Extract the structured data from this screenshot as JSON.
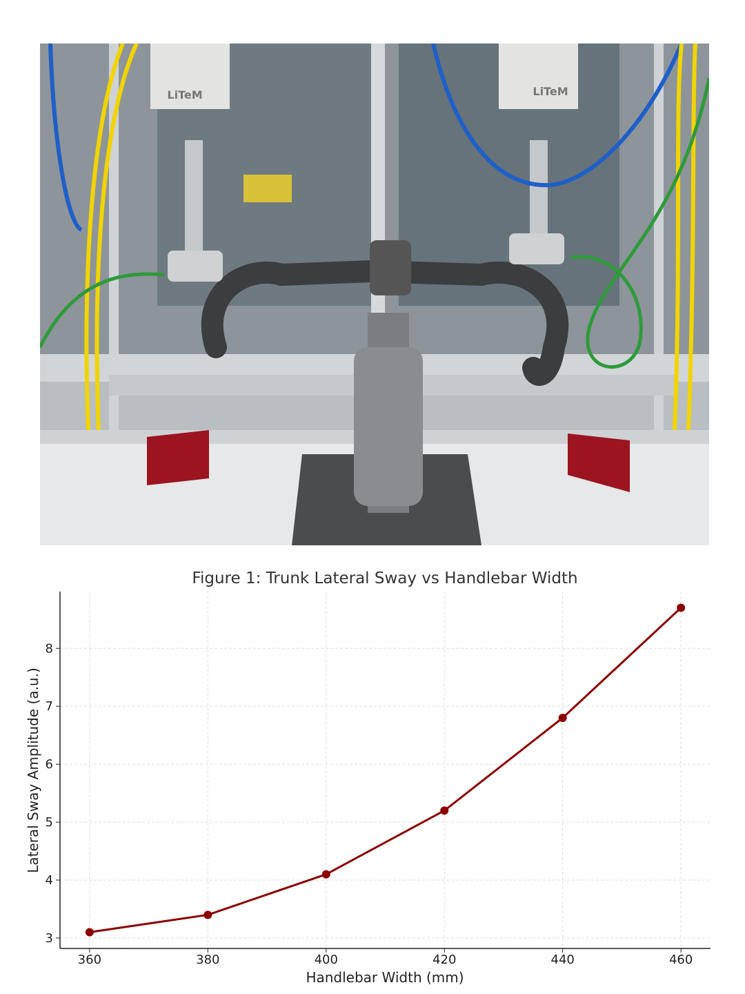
{
  "photo": {
    "logo_text": [
      "LiTeM",
      "LiTeM"
    ]
  },
  "chart_data": {
    "type": "line",
    "title": "Figure 1: Trunk Lateral Sway vs Handlebar Width",
    "xlabel": "Handlebar Width (mm)",
    "ylabel": "Lateral Sway Amplitude (a.u.)",
    "x": [
      360,
      380,
      400,
      420,
      440,
      460
    ],
    "series": [
      {
        "values": [
          3.1,
          3.4,
          4.1,
          5.2,
          6.8,
          8.7
        ],
        "color": "#8b0000"
      }
    ],
    "xticks": [
      360,
      380,
      400,
      420,
      440,
      460
    ],
    "yticks": [
      3,
      4,
      5,
      6,
      7,
      8
    ],
    "xlim": [
      355,
      465
    ],
    "ylim": [
      2.82,
      8.98
    ],
    "grid": true,
    "markers": "circle"
  }
}
